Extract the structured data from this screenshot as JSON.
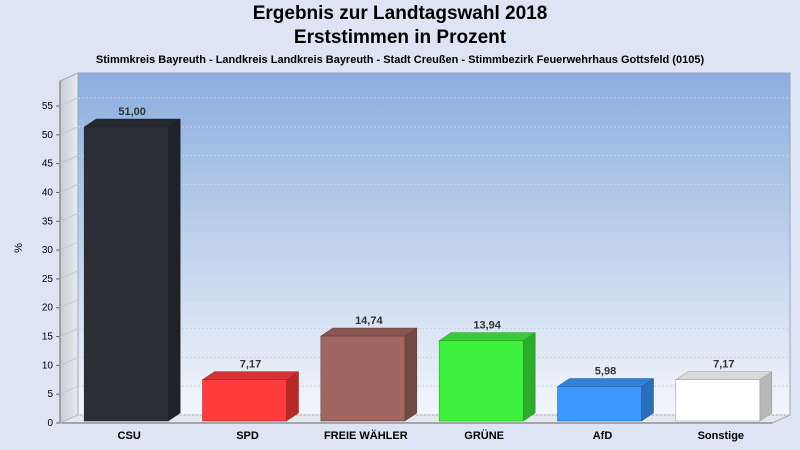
{
  "chart_data": {
    "type": "bar",
    "title": "Ergebnis zur Landtagswahl 2018",
    "subtitle": "Erststimmen in Prozent",
    "subtitle2": "Stimmkreis Bayreuth - Landkreis Landkreis Bayreuth - Stadt Creußen - Stimmbezirk Feuerwehrhaus Gottsfeld (0105)",
    "ylabel": "%",
    "ylim": [
      0,
      55
    ],
    "yticks": [
      "0",
      "5",
      "10",
      "15",
      "20",
      "25",
      "30",
      "35",
      "40",
      "45",
      "50",
      "55"
    ],
    "categories": [
      "CSU",
      "SPD",
      "FREIE WÄHLER",
      "GRÜNE",
      "AfD",
      "Sonstige"
    ],
    "values": [
      51.0,
      7.17,
      14.74,
      13.94,
      5.98,
      7.17
    ],
    "value_labels": [
      "51,00",
      "7,17",
      "14,74",
      "13,94",
      "5,98",
      "7,17"
    ],
    "colors": [
      "#2c2f36",
      "#ff3b3b",
      "#a0665f",
      "#3df23d",
      "#3a98ff",
      "#ffffff"
    ],
    "grid": true
  }
}
